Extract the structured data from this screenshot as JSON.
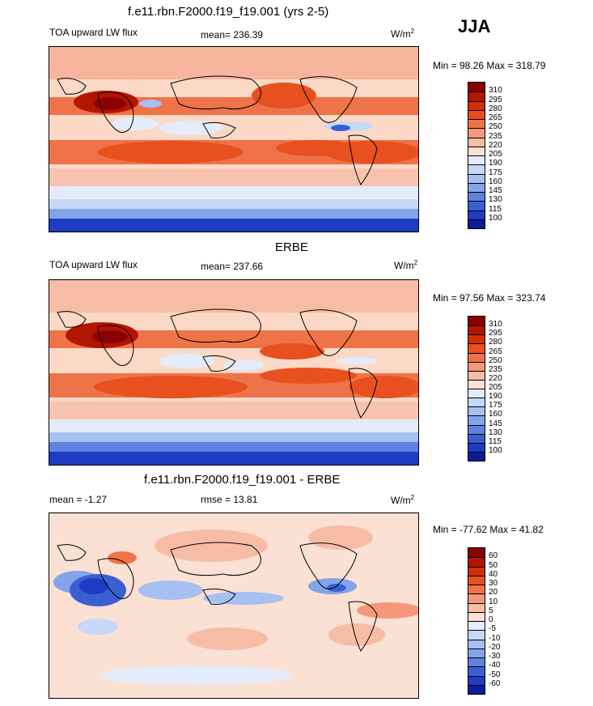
{
  "season": "JJA",
  "panels": [
    {
      "title": "f.e11.rbn.F2000.f19_f19.001 (yrs 2-5)",
      "left_label": "TOA upward LW flux",
      "center_label": "mean= 236.39",
      "units": "W/m",
      "units_sup": "2",
      "minmax": "Min =  98.26 Max = 318.79",
      "colorbar": {
        "labels": [
          "310",
          "295",
          "280",
          "265",
          "250",
          "235",
          "220",
          "205",
          "190",
          "175",
          "160",
          "145",
          "130",
          "115",
          "100"
        ],
        "colors": [
          "#8b0000",
          "#b41500",
          "#d23000",
          "#e8501f",
          "#ef7348",
          "#f4977a",
          "#f7bca6",
          "#fbe0d4",
          "#e4ecfb",
          "#c6d8f7",
          "#a6c0f1",
          "#84a4ea",
          "#5f82df",
          "#3a5fd3",
          "#1d3cc2",
          "#0a1c9a"
        ]
      }
    },
    {
      "title": "ERBE",
      "left_label": "TOA upward LW flux",
      "center_label": "mean= 237.66",
      "units": "W/m",
      "units_sup": "2",
      "minmax": "Min =  97.56 Max = 323.74",
      "colorbar": {
        "labels": [
          "310",
          "295",
          "280",
          "265",
          "250",
          "235",
          "220",
          "205",
          "190",
          "175",
          "160",
          "145",
          "130",
          "115",
          "100"
        ],
        "colors": [
          "#8b0000",
          "#b41500",
          "#d23000",
          "#e8501f",
          "#ef7348",
          "#f4977a",
          "#f7bca6",
          "#fbe0d4",
          "#e4ecfb",
          "#c6d8f7",
          "#a6c0f1",
          "#84a4ea",
          "#5f82df",
          "#3a5fd3",
          "#1d3cc2",
          "#0a1c9a"
        ]
      }
    },
    {
      "title": "f.e11.rbn.F2000.f19_f19.001 - ERBE",
      "left_label": "mean =  -1.27",
      "center_label": "rmse =  13.81",
      "units": "W/m",
      "units_sup": "2",
      "minmax": "Min = -77.62 Max =  41.82",
      "colorbar": {
        "labels": [
          "60",
          "50",
          "40",
          "30",
          "20",
          "10",
          "5",
          "0",
          "-5",
          "-10",
          "-20",
          "-30",
          "-40",
          "-50",
          "-60"
        ],
        "colors": [
          "#8b0000",
          "#b41500",
          "#d23000",
          "#e8501f",
          "#ef7348",
          "#f4977a",
          "#f7bca6",
          "#fbe0d4",
          "#e4ecfb",
          "#c6d8f7",
          "#a6c0f1",
          "#84a4ea",
          "#5f82df",
          "#3a5fd3",
          "#1d3cc2",
          "#0a1c9a"
        ]
      }
    }
  ]
}
